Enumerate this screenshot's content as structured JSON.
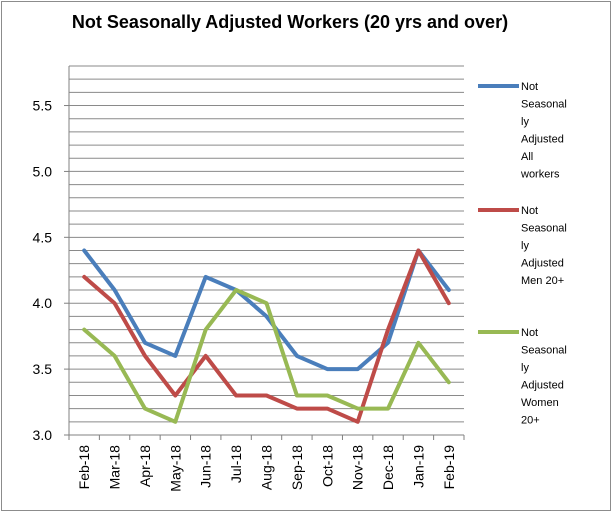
{
  "chart_data": {
    "type": "line",
    "title": "Not Seasonally Adjusted Workers (20 yrs and over)",
    "categories": [
      "Feb-18",
      "Mar-18",
      "Apr-18",
      "May-18",
      "Jun-18",
      "Jul-18",
      "Aug-18",
      "Sep-18",
      "Oct-18",
      "Nov-18",
      "Dec-18",
      "Jan-19",
      "Feb-19"
    ],
    "ylim": [
      3.0,
      5.8
    ],
    "yticks": [
      "3.0",
      "3.5",
      "4.0",
      "4.5",
      "5.0",
      "5.5"
    ],
    "grid": "horizontal",
    "legend": "right",
    "series": [
      {
        "name": "Not Seasonally Adjusted All workers",
        "color": "#4a7ebb",
        "values": [
          4.4,
          4.1,
          3.7,
          3.6,
          4.2,
          4.1,
          3.9,
          3.6,
          3.5,
          3.5,
          3.7,
          4.4,
          4.1
        ]
      },
      {
        "name": "Not Seasonally Adjusted Men 20+",
        "color": "#be4b48",
        "values": [
          4.2,
          4.0,
          3.6,
          3.3,
          3.6,
          3.3,
          3.3,
          3.2,
          3.2,
          3.1,
          3.8,
          4.4,
          4.0
        ]
      },
      {
        "name": "Not Seasonally Adjusted Women 20+",
        "color": "#98b954",
        "values": [
          3.8,
          3.6,
          3.2,
          3.1,
          3.8,
          4.1,
          4.0,
          3.3,
          3.3,
          3.2,
          3.2,
          3.7,
          3.4
        ]
      }
    ]
  }
}
